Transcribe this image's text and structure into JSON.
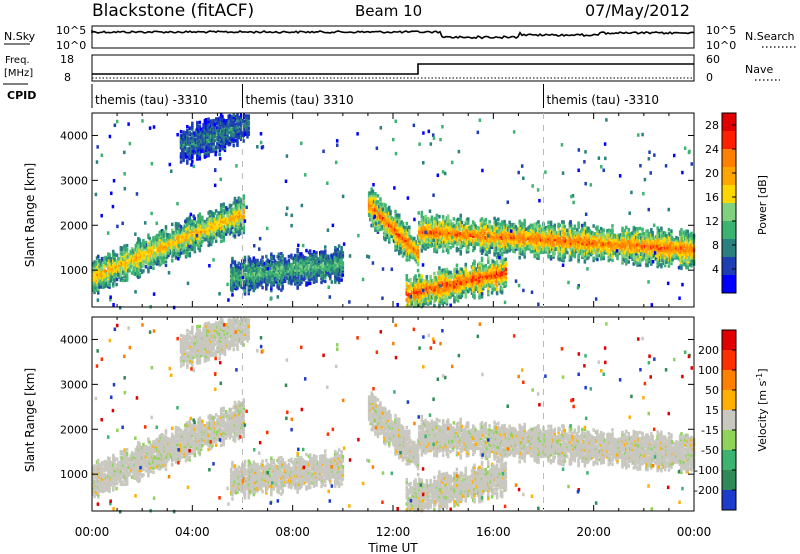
{
  "header": {
    "title": "Blackstone (fitACF)",
    "beam": "Beam 10",
    "date": "07/May/2012"
  },
  "top_panels": {
    "nsky_label": "N.Sky",
    "nsky_ticks": [
      "10^5",
      "10^0"
    ],
    "nsearch_label": "N.Search",
    "nsearch_ticks": [
      "10^5",
      "10^0"
    ],
    "freq_label": "Freq.",
    "freq_unit": "[MHz]",
    "freq_ticks": [
      "18",
      "8"
    ],
    "nave_label": "Nave",
    "nave_ticks": [
      "60",
      "0"
    ],
    "cpid_label": "CPID",
    "cpid_entries": [
      {
        "time_h": 0,
        "label": "themis (tau) -3310"
      },
      {
        "time_h": 6,
        "label": "themis (tau) 3310"
      },
      {
        "time_h": 18,
        "label": "themis (tau) -3310"
      }
    ]
  },
  "chart_data": [
    {
      "type": "heatmap",
      "panel": "power",
      "ylabel": "Slant Range [km]",
      "ylim": [
        180,
        4500
      ],
      "y_ticks": [
        1000,
        2000,
        3000,
        4000
      ],
      "xlabel": "Time UT",
      "xlim_hours": [
        0,
        24
      ],
      "x_ticks": [
        "00:00",
        "04:00",
        "08:00",
        "12:00",
        "16:00",
        "20:00",
        "00:00"
      ],
      "colorbar": {
        "label": "Power [dB]",
        "ticks": [
          "28",
          "24",
          "20",
          "16",
          "12",
          "8",
          "4"
        ],
        "range": [
          0,
          30
        ],
        "colors": [
          "#0000ff",
          "#1e3fb4",
          "#2a7f7f",
          "#3cb371",
          "#7fd07f",
          "#ffd700",
          "#ffa500",
          "#ff7f00",
          "#ff2000",
          "#e00000"
        ]
      },
      "echo_bands": [
        {
          "t0": 0.0,
          "t1": 6.0,
          "r0": 900,
          "r1": 2300,
          "level": 18
        },
        {
          "t0": 3.5,
          "t1": 6.2,
          "r0": 3800,
          "r1": 4300,
          "level": 6
        },
        {
          "t0": 5.5,
          "t1": 10.0,
          "r0": 900,
          "r1": 1200,
          "level": 10
        },
        {
          "t0": 11.0,
          "t1": 13.0,
          "r0": 2500,
          "r1": 1400,
          "level": 22
        },
        {
          "t0": 12.5,
          "t1": 16.5,
          "r0": 500,
          "r1": 1000,
          "level": 24
        },
        {
          "t0": 13.0,
          "t1": 24.0,
          "r0": 1900,
          "r1": 1500,
          "level": 22
        }
      ]
    },
    {
      "type": "heatmap",
      "panel": "velocity",
      "ylabel": "Slant Range [km]",
      "ylim": [
        180,
        4500
      ],
      "y_ticks": [
        1000,
        2000,
        3000,
        4000
      ],
      "xlabel": "Time UT",
      "xlim_hours": [
        0,
        24
      ],
      "x_ticks": [
        "00:00",
        "04:00",
        "08:00",
        "12:00",
        "16:00",
        "20:00",
        "00:00"
      ],
      "colorbar": {
        "label": "Velocity [m s",
        "label_sup": "-1",
        "label_end": "]",
        "ticks": [
          "200",
          "100",
          "50",
          "15",
          "-15",
          "-50",
          "-100",
          "-200"
        ],
        "colors": [
          "#1e3ccc",
          "#2e8b57",
          "#3cb371",
          "#8fd35a",
          "#c8c8c0",
          "#ffb000",
          "#ff7f00",
          "#ff3000",
          "#e00000"
        ]
      }
    }
  ]
}
